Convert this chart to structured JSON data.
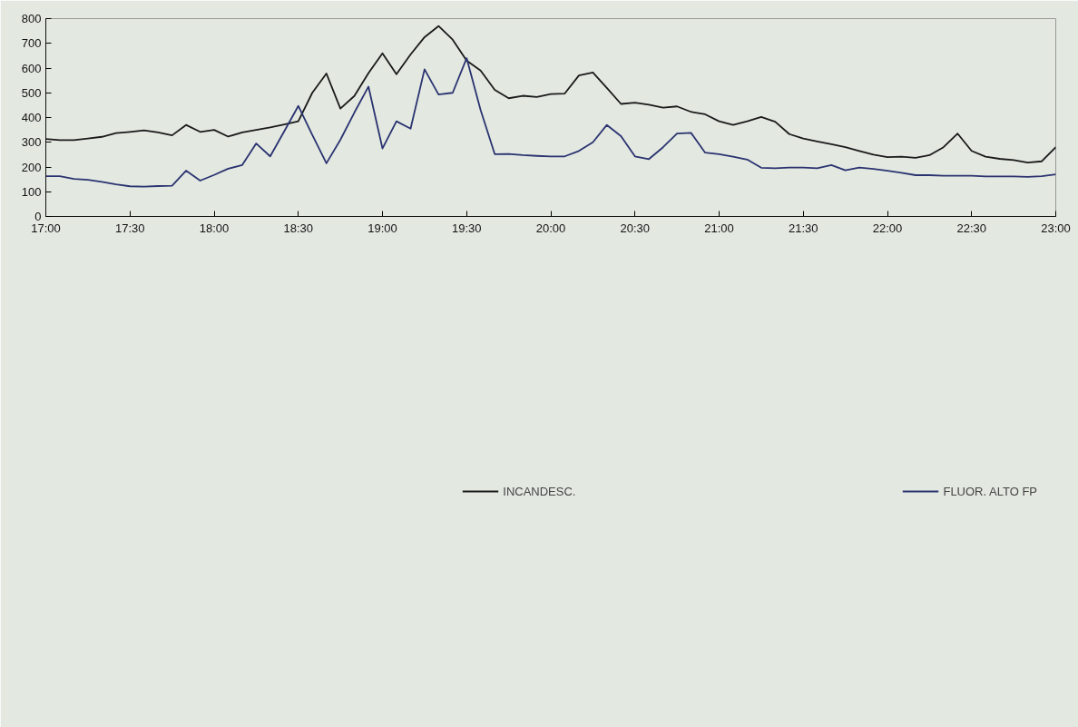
{
  "chart_data": {
    "type": "line",
    "x": [
      17,
      17.083,
      17.167,
      17.25,
      17.333,
      17.417,
      17.5,
      17.583,
      17.667,
      17.75,
      17.833,
      17.917,
      18,
      18.083,
      18.167,
      18.25,
      18.333,
      18.417,
      18.5,
      18.583,
      18.667,
      18.75,
      18.833,
      18.917,
      19,
      19.083,
      19.167,
      19.25,
      19.333,
      19.417,
      19.5,
      19.583,
      19.667,
      19.75,
      19.833,
      19.917,
      20,
      20.083,
      20.167,
      20.25,
      20.333,
      20.417,
      20.5,
      20.583,
      20.667,
      20.75,
      20.833,
      20.917,
      21,
      21.083,
      21.167,
      21.25,
      21.333,
      21.417,
      21.5,
      21.583,
      21.667,
      21.75,
      21.833,
      21.917,
      22,
      22.083,
      22.167,
      22.25,
      22.333,
      22.417,
      22.5,
      22.583,
      22.667,
      22.75,
      22.833,
      22.917,
      23
    ],
    "series": [
      {
        "name": "INCANDESC.",
        "color": "#1a1a1a",
        "values": [
          313,
          309,
          309,
          315,
          322,
          337,
          342,
          348,
          340,
          328,
          370,
          342,
          350,
          323,
          340,
          350,
          360,
          372,
          385,
          500,
          578,
          436,
          487,
          580,
          660,
          575,
          655,
          725,
          770,
          715,
          630,
          590,
          512,
          478,
          488,
          483,
          495,
          497,
          570,
          582,
          520,
          455,
          460,
          452,
          440,
          445,
          423,
          413,
          385,
          370,
          385,
          402,
          383,
          333,
          315,
          303,
          292,
          280,
          265,
          250,
          240,
          242,
          237,
          248,
          280,
          335,
          265,
          242,
          233,
          228,
          218,
          223,
          280
        ]
      },
      {
        "name": "FLUOR. ALTO FP",
        "color": "#2a3370",
        "values": [
          163,
          163,
          152,
          148,
          140,
          130,
          122,
          121,
          123,
          124,
          185,
          145,
          168,
          193,
          208,
          295,
          243,
          345,
          447,
          330,
          215,
          310,
          420,
          525,
          275,
          385,
          355,
          595,
          493,
          500,
          640,
          430,
          252,
          253,
          248,
          245,
          243,
          243,
          265,
          300,
          370,
          325,
          243,
          232,
          280,
          335,
          338,
          258,
          252,
          242,
          230,
          197,
          195,
          198,
          198,
          195,
          208,
          187,
          198,
          192,
          185,
          177,
          167,
          167,
          165,
          165,
          165,
          162,
          162,
          162,
          160,
          163,
          170
        ]
      }
    ],
    "xlim": [
      17,
      23
    ],
    "ylim": [
      0,
      800
    ],
    "xticks": [
      {
        "value": 17,
        "label": "17:00"
      },
      {
        "value": 17.5,
        "label": "17:30"
      },
      {
        "value": 18,
        "label": "18:00"
      },
      {
        "value": 18.5,
        "label": "18:30"
      },
      {
        "value": 19,
        "label": "19:00"
      },
      {
        "value": 19.5,
        "label": "19:30"
      },
      {
        "value": 20,
        "label": "20:00"
      },
      {
        "value": 20.5,
        "label": "20:30"
      },
      {
        "value": 21,
        "label": "21:00"
      },
      {
        "value": 21.5,
        "label": "21:30"
      },
      {
        "value": 22,
        "label": "22:00"
      },
      {
        "value": 22.5,
        "label": "22:30"
      },
      {
        "value": 23,
        "label": "23:00"
      }
    ],
    "yticks": [
      0,
      100,
      200,
      300,
      400,
      500,
      600,
      700,
      800
    ],
    "grid": false,
    "legend": "bottom",
    "marker": "none",
    "line_style": "solid"
  }
}
